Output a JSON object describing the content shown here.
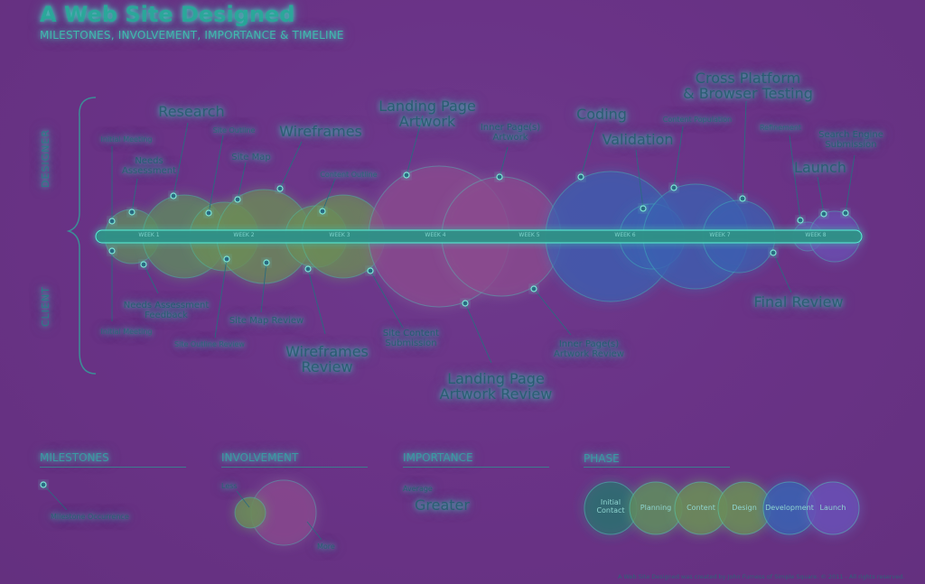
{
  "header": {
    "title": "A Web Site Designed",
    "subtitle": "MILESTONES, INVOLVEMENT, IMPORTANCE & TIMELINE"
  },
  "roles": {
    "designer": "DESIGNER",
    "client": "CLIENT"
  },
  "weeks": [
    "WEEK 1",
    "WEEK 2",
    "WEEK 3",
    "WEEK 4",
    "WEEK 5",
    "WEEK 6",
    "WEEK 7",
    "WEEK 8"
  ],
  "designer_milestones": [
    {
      "label": "Initial Meeting",
      "size": "small"
    },
    {
      "label": "Needs\nAssessment",
      "size": "mid"
    },
    {
      "label": "Research",
      "size": "big"
    },
    {
      "label": "Site Outline",
      "size": "small"
    },
    {
      "label": "Site Map",
      "size": "mid"
    },
    {
      "label": "Wireframes",
      "size": "big"
    },
    {
      "label": "Content Outline",
      "size": "small"
    },
    {
      "label": "Landing Page\nArtwork",
      "size": "big"
    },
    {
      "label": "Inner Page(s)\nArtwork",
      "size": "mid"
    },
    {
      "label": "Coding",
      "size": "big"
    },
    {
      "label": "Validation",
      "size": "big"
    },
    {
      "label": "Content Population",
      "size": "small"
    },
    {
      "label": "Cross Platform\n& Browser Testing",
      "size": "big"
    },
    {
      "label": "Refinement",
      "size": "small"
    },
    {
      "label": "Launch",
      "size": "big"
    },
    {
      "label": "Search Engine\nSubmission",
      "size": "mid"
    }
  ],
  "client_milestones": [
    {
      "label": "Initial Meeting",
      "size": "small"
    },
    {
      "label": "Needs Assessment\nFeedback",
      "size": "mid"
    },
    {
      "label": "Site Outline Review",
      "size": "small"
    },
    {
      "label": "Site Map Review",
      "size": "mid"
    },
    {
      "label": "Wireframes\nReview",
      "size": "big"
    },
    {
      "label": "Site Content\nSubmission",
      "size": "mid"
    },
    {
      "label": "Landing Page\nArtwork Review",
      "size": "big"
    },
    {
      "label": "Inner Page(s)\nArtwork Review",
      "size": "mid"
    },
    {
      "label": "Final Review",
      "size": "big"
    }
  ],
  "legend": {
    "milestones": {
      "title": "MILESTONES",
      "occurrence": "Milestone Occurrence"
    },
    "involvement": {
      "title": "INVOLVEMENT",
      "less": "Less",
      "more": "More"
    },
    "importance": {
      "title": "IMPORTANCE",
      "average": "Average",
      "greater": "Greater"
    },
    "phase": {
      "title": "PHASE",
      "phases": [
        "Initial\nContact",
        "Planning",
        "Content",
        "Design",
        "Development",
        "Launch"
      ]
    }
  },
  "credit": "A Web Site Designed was created by John Furness of Simple Square. © 2011 - All rights reserved.",
  "colors": {
    "background": "#6a3387",
    "timeline": "#2d8f86",
    "glow": "#46e6c8",
    "planning_bubble": "#5f8a5f",
    "content_bubble": "#6b8c58",
    "design_bubble": "#8a4a8e",
    "development_bubble": "#3a5fb0",
    "launch_bubble": "#6a4eb5"
  }
}
